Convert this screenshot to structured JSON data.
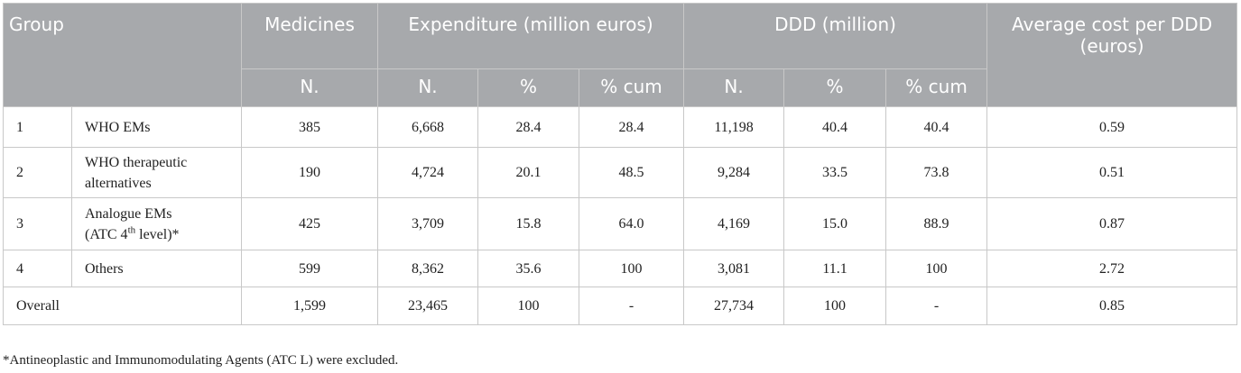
{
  "header": {
    "group": "Group",
    "medicines": "Medicines",
    "expenditure": "Expenditure (million euros)",
    "ddd": "DDD (million)",
    "avg_cost": "Average cost per DDD (euros)",
    "sub": {
      "n1": "N.",
      "n2": "N.",
      "pct1": "%",
      "cum1": "% cum",
      "n3": "N.",
      "pct2": "%",
      "cum2": "% cum"
    }
  },
  "rows": [
    {
      "group": "1",
      "label": "WHO EMs",
      "medicines": "385",
      "exp_n": "6,668",
      "exp_pct": "28.4",
      "exp_cum": "28.4",
      "ddd_n": "11,198",
      "ddd_pct": "40.4",
      "ddd_cum": "40.4",
      "avg": "0.59"
    },
    {
      "group": "2",
      "label_line1": "WHO therapeutic",
      "label_line2": "alternatives",
      "medicines": "190",
      "exp_n": "4,724",
      "exp_pct": "20.1",
      "exp_cum": "48.5",
      "ddd_n": "9,284",
      "ddd_pct": "33.5",
      "ddd_cum": "73.8",
      "avg": "0.51"
    },
    {
      "group": "3",
      "label_line1": "Analogue EMs",
      "label_line2_pre": "(ATC 4",
      "label_line2_sup": "th",
      "label_line2_post": " level)*",
      "medicines": "425",
      "exp_n": "3,709",
      "exp_pct": "15.8",
      "exp_cum": "64.0",
      "ddd_n": "4,169",
      "ddd_pct": "15.0",
      "ddd_cum": "88.9",
      "avg": "0.87"
    },
    {
      "group": "4",
      "label": "Others",
      "medicines": "599",
      "exp_n": "8,362",
      "exp_pct": "35.6",
      "exp_cum": "100",
      "ddd_n": "3,081",
      "ddd_pct": "11.1",
      "ddd_cum": "100",
      "avg": "2.72"
    }
  ],
  "overall": {
    "label": "Overall",
    "medicines": "1,599",
    "exp_n": "23,465",
    "exp_pct": "100",
    "exp_cum": "-",
    "ddd_n": "27,734",
    "ddd_pct": "100",
    "ddd_cum": "-",
    "avg": "0.85"
  },
  "footnote": "*Antineoplastic and Immunomodulating Agents (ATC L) were excluded."
}
